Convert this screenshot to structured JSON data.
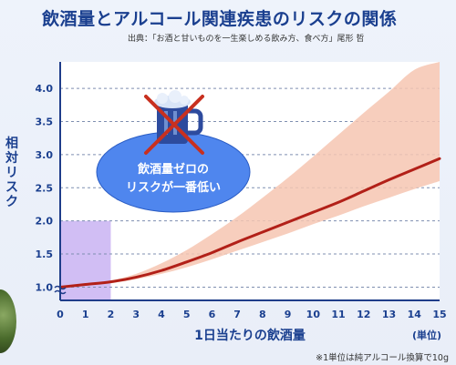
{
  "title": "飲酒量とアルコール関連疾患のリスクの関係",
  "source": "出典：「お酒と甘いものを一生楽しめる飲み方、食べ方」尾形 哲",
  "footnote": "※1単位は純アルコール換算で10g",
  "annotation": {
    "line1": "飲酒量ゼロの",
    "line2": "リスクが一番低い"
  },
  "chart_data": {
    "type": "line",
    "title": "飲酒量とアルコール関連疾患のリスクの関係",
    "xlabel": "1日当たりの飲酒量",
    "xunit": "(単位)",
    "ylabel": "相対リスク",
    "xlim": [
      0,
      15
    ],
    "ylim": [
      0.8,
      4.4
    ],
    "xticks": [
      0,
      1,
      2,
      3,
      4,
      5,
      6,
      7,
      8,
      9,
      10,
      11,
      12,
      13,
      14,
      15
    ],
    "yticks": [
      1.0,
      1.5,
      2.0,
      2.5,
      3.0,
      3.5,
      4.0
    ],
    "ytick_labels": [
      "1.0",
      "1.5",
      "2.0",
      "2.5",
      "3.0",
      "3.5",
      "4.0"
    ],
    "grid": true,
    "highlight_range": {
      "x": [
        0,
        2
      ],
      "y": [
        0.8,
        2.0
      ]
    },
    "series": [
      {
        "x": [
          0,
          1,
          2,
          3,
          4,
          5,
          6,
          7,
          8,
          9,
          10,
          11,
          12,
          13,
          14,
          15
        ],
        "y": [
          1.0,
          1.04,
          1.08,
          1.15,
          1.25,
          1.38,
          1.52,
          1.68,
          1.83,
          1.98,
          2.13,
          2.28,
          2.45,
          2.62,
          2.78,
          2.94
        ],
        "lower": [
          1.0,
          1.03,
          1.06,
          1.12,
          1.2,
          1.3,
          1.42,
          1.55,
          1.68,
          1.81,
          1.95,
          2.08,
          2.22,
          2.35,
          2.48,
          2.6
        ],
        "upper": [
          1.0,
          1.05,
          1.1,
          1.2,
          1.36,
          1.56,
          1.8,
          2.06,
          2.35,
          2.65,
          2.97,
          3.3,
          3.63,
          3.95,
          4.28,
          4.6
        ]
      }
    ],
    "colors": {
      "line": "#b22018",
      "band": "#f6c6b2",
      "highlight": "#c9b3f2",
      "grid": "#7f8fb0",
      "axis": "#1f3d8a",
      "annotation_fill": "#4f86ee",
      "cross": "#c8301f"
    }
  }
}
